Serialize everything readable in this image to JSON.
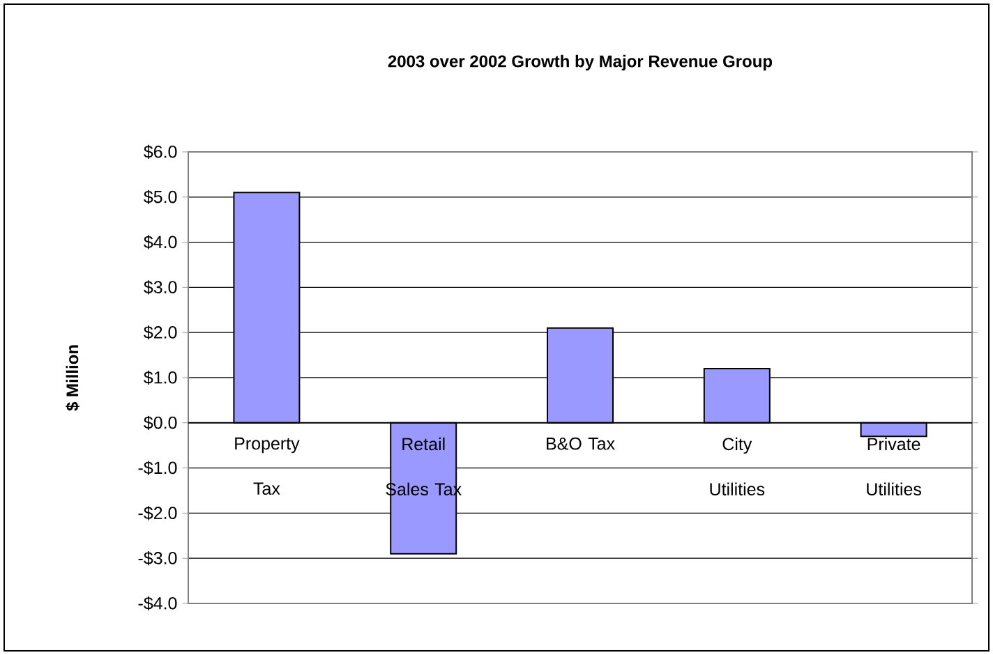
{
  "chart_data": {
    "type": "bar",
    "title": "2003 over 2002 Growth by Major Revenue Group",
    "ylabel": "$ Million",
    "categories": [
      "Property Tax",
      "Retail Sales Tax",
      "B&O Tax",
      "City Utilities",
      "Private Utilities"
    ],
    "values": [
      5.1,
      -2.9,
      2.1,
      1.2,
      -0.3
    ],
    "color": "#9999ff",
    "ylim": [
      -4.0,
      6.0
    ],
    "yticks": [
      {
        "value": -4.0,
        "label": "-$4.0"
      },
      {
        "value": -3.0,
        "label": "-$3.0"
      },
      {
        "value": -2.0,
        "label": "-$2.0"
      },
      {
        "value": -1.0,
        "label": "-$1.0"
      },
      {
        "value": 0.0,
        "label": "$0.0"
      },
      {
        "value": 1.0,
        "label": "$1.0"
      },
      {
        "value": 2.0,
        "label": "$2.0"
      },
      {
        "value": 3.0,
        "label": "$3.0"
      },
      {
        "value": 4.0,
        "label": "$4.0"
      },
      {
        "value": 5.0,
        "label": "$5.0"
      },
      {
        "value": 6.0,
        "label": "$6.0"
      }
    ],
    "grid": "y"
  }
}
